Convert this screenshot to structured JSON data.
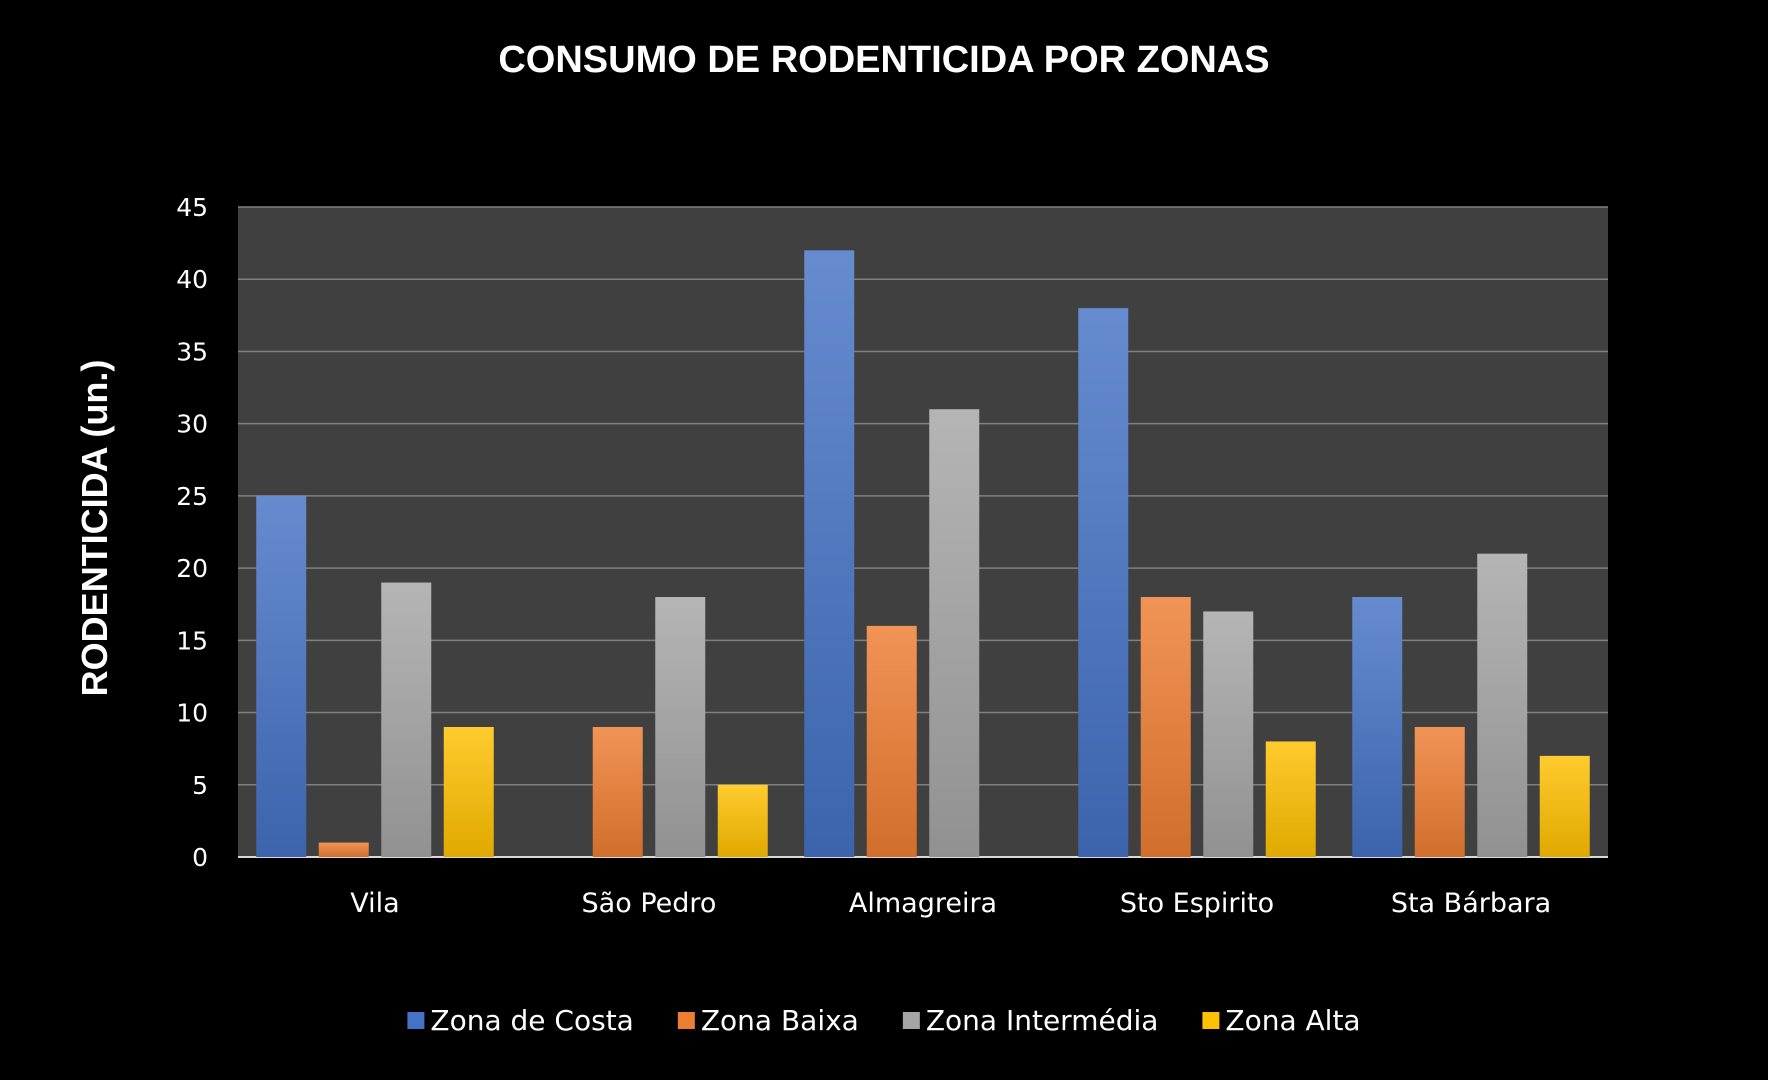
{
  "chart_data": {
    "type": "bar",
    "title": "CONSUMO DE RODENTICIDA POR  ZONAS",
    "ylabel": "RODENTICIDA  (un.)",
    "xlabel": "",
    "ylim": [
      0,
      45
    ],
    "yticks": [
      0,
      5,
      10,
      15,
      20,
      25,
      30,
      35,
      40,
      45
    ],
    "grid": true,
    "legend_position": "bottom",
    "categories": [
      "Vila",
      "São Pedro",
      "Almagreira",
      "Sto Espirito",
      "Sta Bárbara"
    ],
    "series": [
      {
        "name": "Zona de Costa",
        "color": "#4472c4",
        "values": [
          25,
          0,
          42,
          38,
          18
        ]
      },
      {
        "name": "Zona Baixa",
        "color": "#ed7d31",
        "values": [
          1,
          9,
          16,
          18,
          9
        ]
      },
      {
        "name": "Zona Intermédia",
        "color": "#a5a5a5",
        "values": [
          19,
          18,
          31,
          17,
          21
        ]
      },
      {
        "name": "Zona Alta",
        "color": "#ffc000",
        "values": [
          9,
          5,
          0,
          8,
          7
        ]
      }
    ]
  }
}
